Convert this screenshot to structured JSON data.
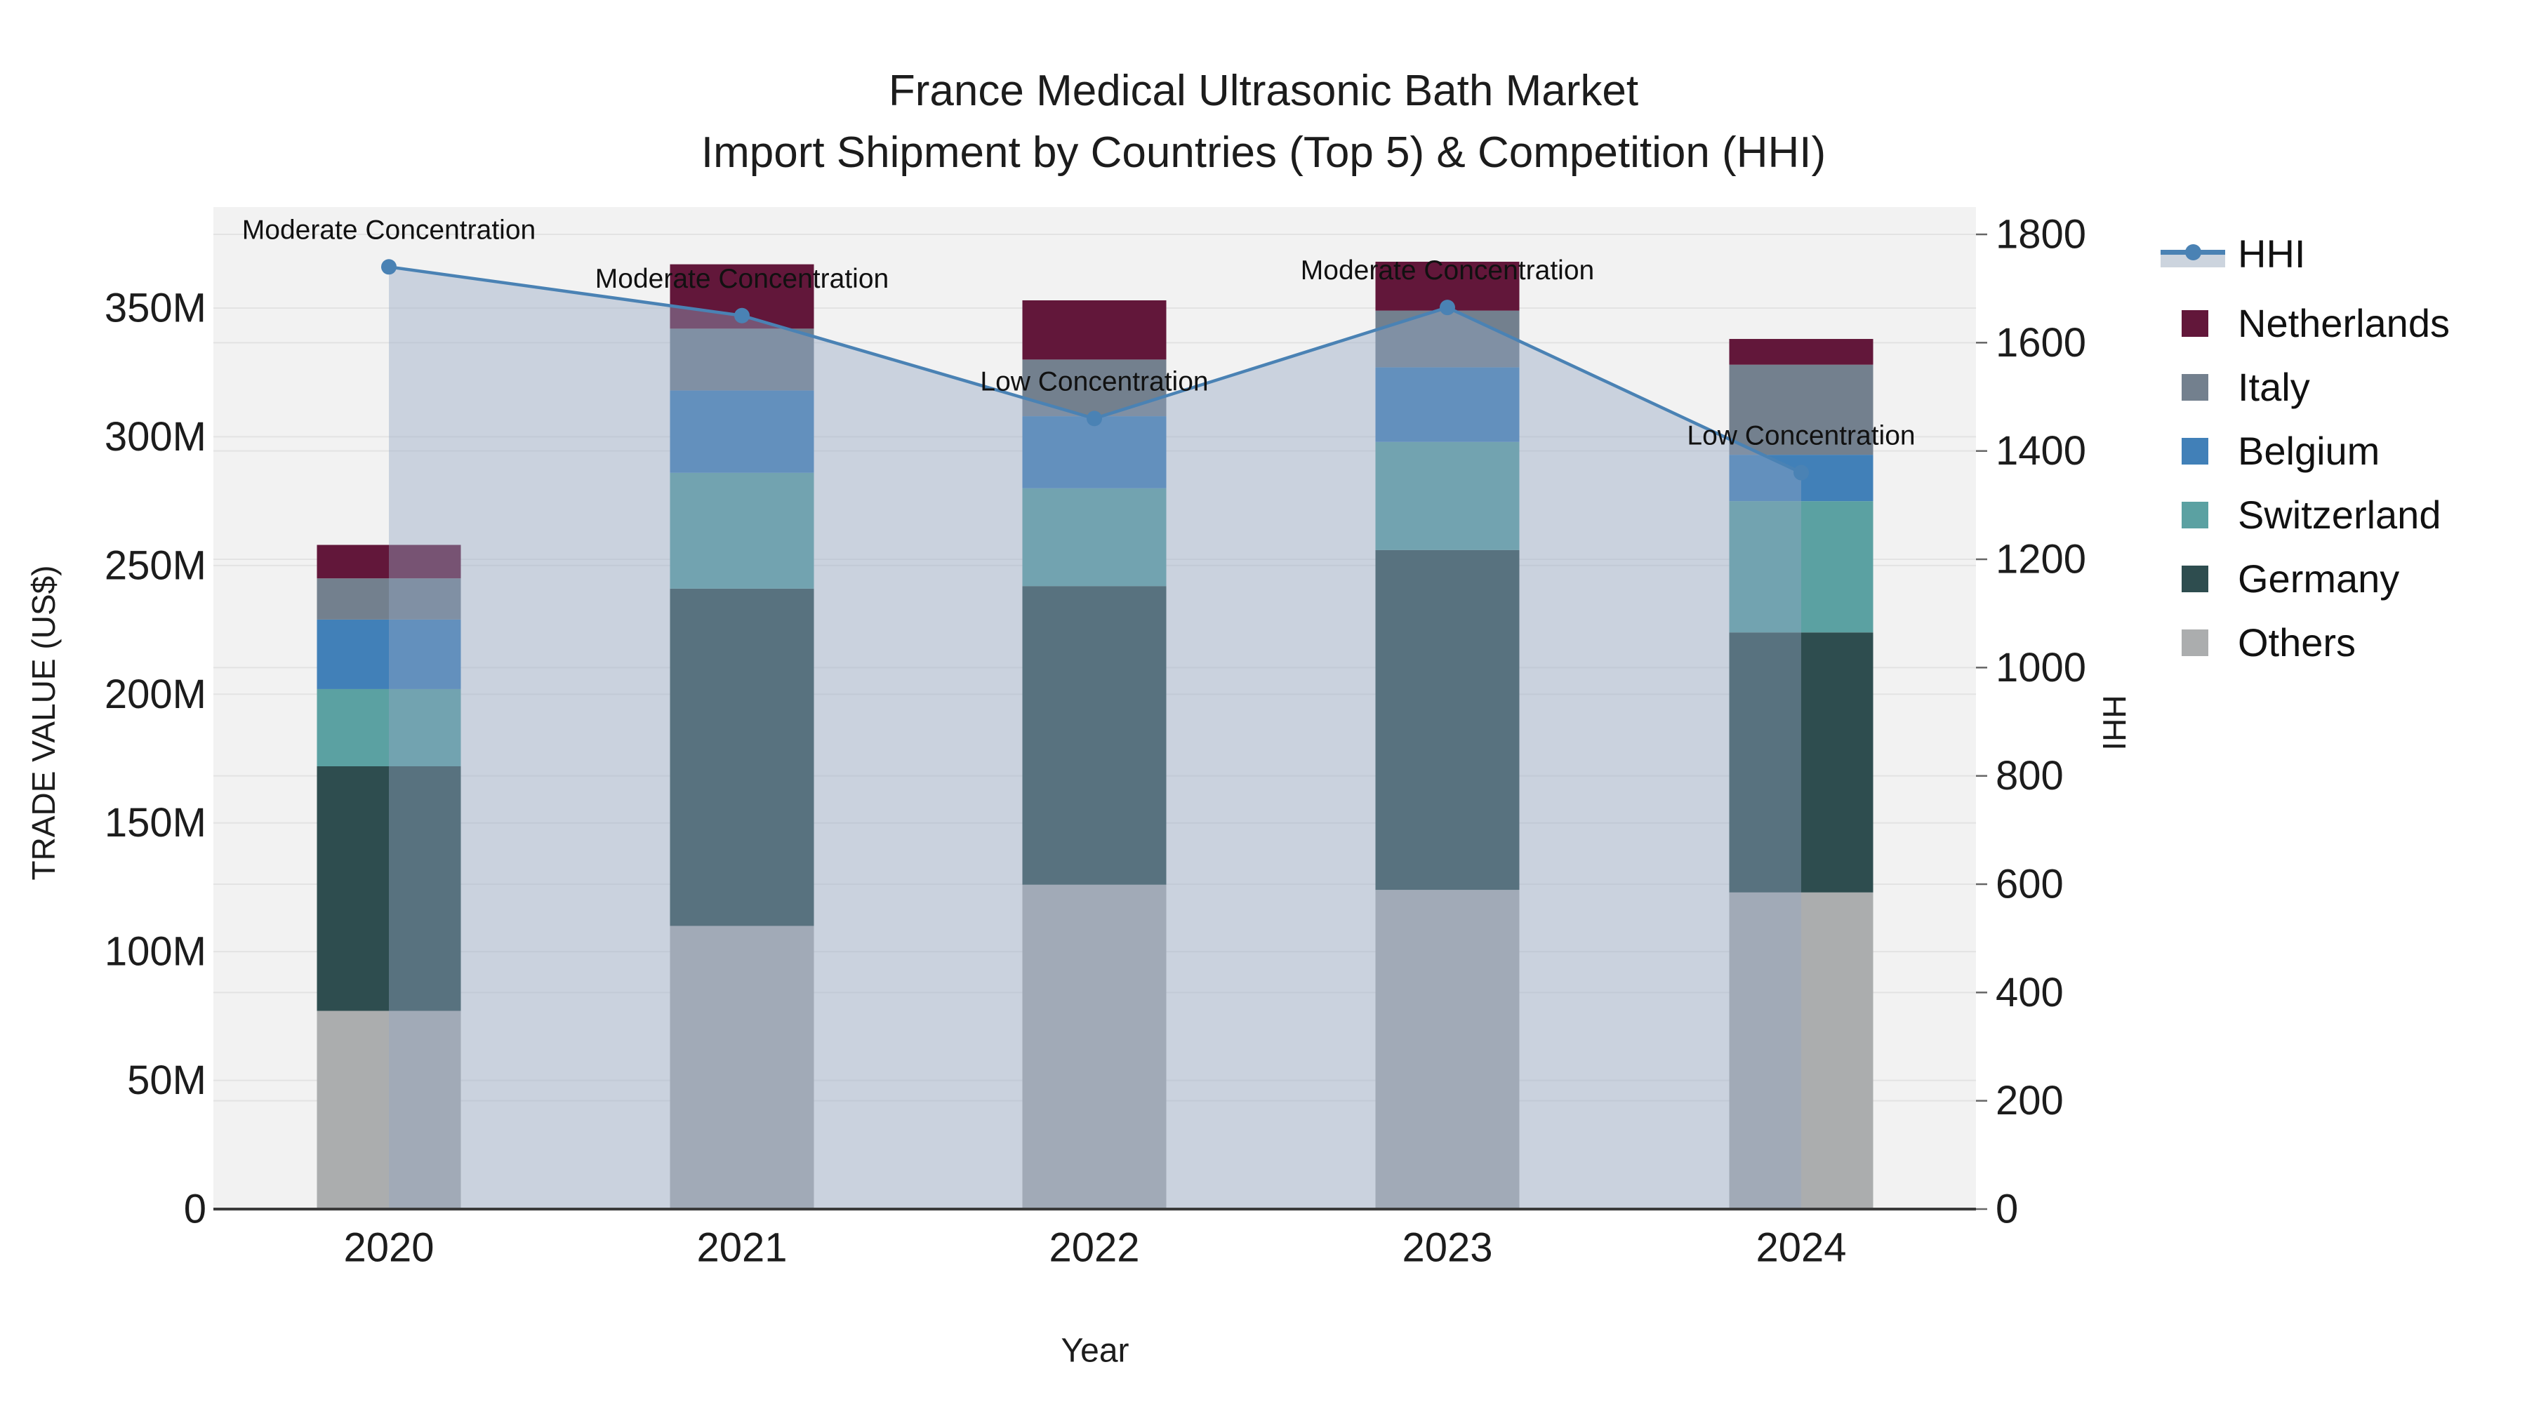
{
  "chart_data": {
    "type": "bar+line",
    "title": "France Medical Ultrasonic Bath Market",
    "subtitle": "Import Shipment by Countries (Top 5) & Competition (HHI)",
    "xlabel": "Year",
    "ylabel_left": "TRADE VALUE (US$)",
    "ylabel_right": "HHI",
    "categories": [
      "2020",
      "2021",
      "2022",
      "2023",
      "2024"
    ],
    "bar_value_unit": "M US$",
    "series": [
      {
        "name": "Others",
        "color": "#abadae",
        "values": [
          77,
          110,
          126,
          124,
          123
        ]
      },
      {
        "name": "Germany",
        "color": "#2e4d4f",
        "values": [
          95,
          131,
          116,
          132,
          101
        ]
      },
      {
        "name": "Switzerland",
        "color": "#5ba1a2",
        "values": [
          30,
          45,
          38,
          42,
          51
        ]
      },
      {
        "name": "Belgium",
        "color": "#4180b8",
        "values": [
          27,
          32,
          28,
          29,
          18
        ]
      },
      {
        "name": "Italy",
        "color": "#73808e",
        "values": [
          16,
          24,
          22,
          22,
          35
        ]
      },
      {
        "name": "Netherlands",
        "color": "#62173a",
        "values": [
          13,
          25,
          23,
          19,
          10
        ]
      }
    ],
    "line_series": {
      "name": "HHI",
      "axis": "right",
      "color": "#4a82b4",
      "fill_color": "rgba(148,168,196,0.42)",
      "marker": "circle",
      "values": [
        1740,
        1650,
        1460,
        1665,
        1360
      ]
    },
    "annotations": [
      {
        "x": "2020",
        "text": "Moderate Concentration"
      },
      {
        "x": "2021",
        "text": "Moderate Concentration"
      },
      {
        "x": "2022",
        "text": "Low Concentration"
      },
      {
        "x": "2023",
        "text": "Moderate Concentration"
      },
      {
        "x": "2024",
        "text": "Low Concentration"
      }
    ],
    "y_left": {
      "ticks": [
        "0",
        "50M",
        "100M",
        "150M",
        "200M",
        "250M",
        "300M",
        "350M"
      ],
      "tick_values": [
        0,
        50,
        100,
        150,
        200,
        250,
        300,
        350
      ],
      "range": [
        0,
        389
      ]
    },
    "y_right": {
      "ticks": [
        "0",
        "200",
        "400",
        "600",
        "800",
        "1000",
        "1200",
        "1400",
        "1600",
        "1800"
      ],
      "tick_values": [
        0,
        200,
        400,
        600,
        800,
        1000,
        1200,
        1400,
        1600,
        1800
      ],
      "range": [
        0,
        1850
      ]
    },
    "legend_order": [
      "HHI",
      "Netherlands",
      "Italy",
      "Belgium",
      "Switzerland",
      "Germany",
      "Others"
    ],
    "legend_position": "right",
    "grid": true,
    "plot_bg_color": "#f2f2f2",
    "gridline_color": "#e3e3e3",
    "axis_line_color": "#3b3b3b",
    "text_color": "#1c1c1c"
  }
}
